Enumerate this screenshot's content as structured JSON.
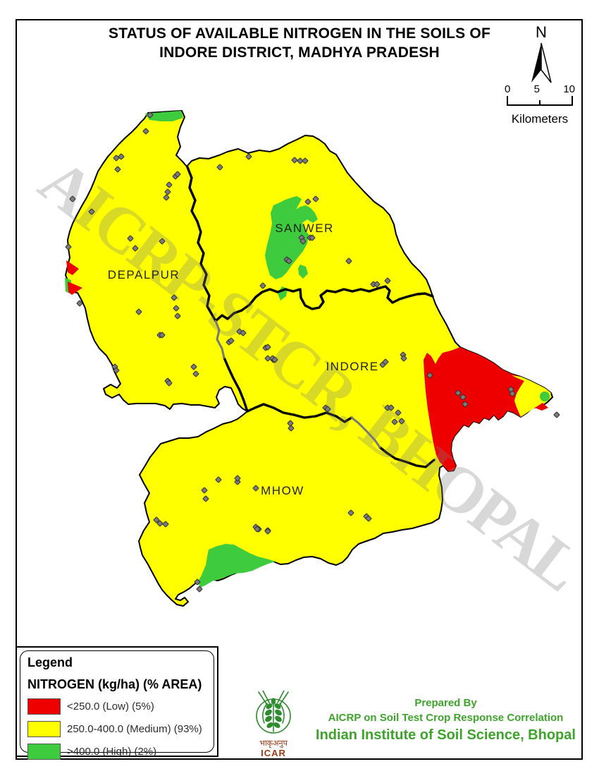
{
  "title": {
    "line1": "STATUS OF AVAILABLE NITROGEN IN THE SOILS OF",
    "line2": "INDORE DISTRICT, MADHYA PRADESH"
  },
  "north_arrow": {
    "label": "N"
  },
  "scale_bar": {
    "tick0": "0",
    "tick1": "5",
    "tick2": "10",
    "unit": "Kilometers"
  },
  "map": {
    "watermark": "AICRP-STCR, BHOPAL",
    "regions": [
      {
        "name": "SANWER"
      },
      {
        "name": "DEPALPUR"
      },
      {
        "name": "INDORE"
      },
      {
        "name": "MHOW"
      }
    ]
  },
  "legend": {
    "title": "Legend",
    "heading": "NITROGEN (kg/ha) (% AREA)",
    "entries": [
      {
        "color": "#ee0000",
        "label": "<250.0 (Low) (5%)"
      },
      {
        "color": "#ffff00",
        "label": "250.0-400.0 (Medium) (93%)"
      },
      {
        "color": "#3ecc3e",
        "label": ">400.0 (High) (2%)"
      }
    ]
  },
  "credits": {
    "prepared_by": "Prepared By",
    "organisation": "AICRP on Soil Test Crop Response Correlation",
    "institute": "Indian Institute of Soil Science, Bhopal",
    "text_color": "#3ea32b"
  },
  "logo": {
    "hindi": "भाकृअनुप",
    "acronym": "ICAR"
  },
  "colors": {
    "low_red": "#ee0000",
    "medium_yellow": "#ffff00",
    "high_green": "#3ecc3e",
    "boundary_black": "#000000",
    "sample_dot_gray": "#7b7b7b"
  }
}
